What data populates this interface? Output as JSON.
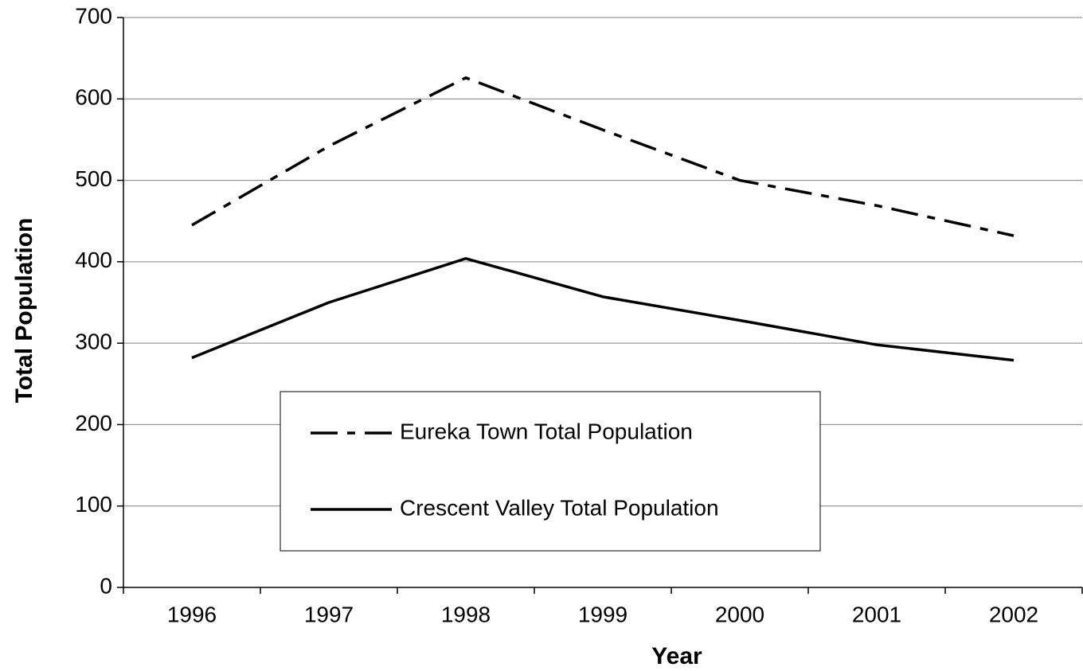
{
  "chart_data": {
    "type": "line",
    "xlabel": "Year",
    "ylabel": "Total Population",
    "categories": [
      "1996",
      "1997",
      "1998",
      "1999",
      "2000",
      "2001",
      "2002"
    ],
    "series": [
      {
        "name": "Eureka Town Total Population",
        "color": "#000000",
        "line_style": "dashdot",
        "values": [
          445,
          542,
          626,
          562,
          500,
          469,
          432
        ]
      },
      {
        "name": "Crescent Valley Total Population",
        "color": "#000000",
        "line_style": "solid",
        "values": [
          282,
          350,
          404,
          357,
          328,
          298,
          279
        ]
      }
    ],
    "ylim": [
      0,
      700
    ],
    "yticks": [
      0,
      100,
      200,
      300,
      400,
      500,
      600,
      700
    ],
    "grid": true,
    "legend": "lower-center"
  }
}
